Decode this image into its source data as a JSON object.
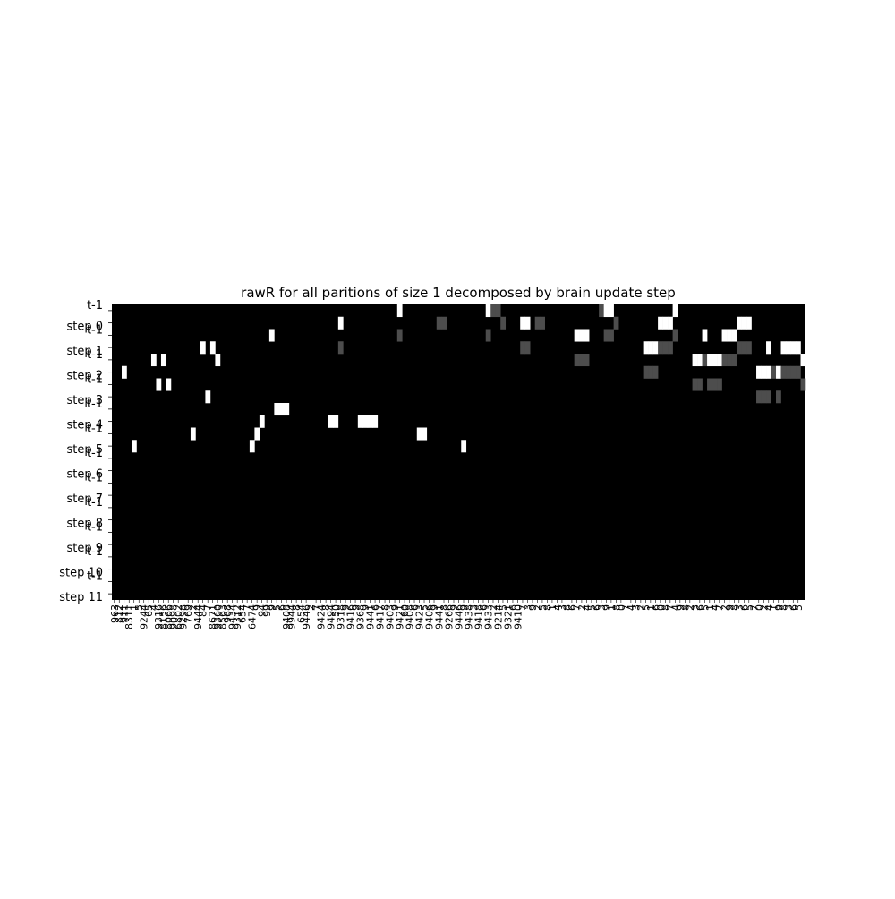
{
  "chart_data": {
    "type": "heatmap",
    "title": "rawR for all paritions of size 1 decomposed by brain update step",
    "xlabel": "",
    "ylabel": "",
    "row_labels": [
      "t-1",
      "step 0",
      "t-1",
      "step 1",
      "t-1",
      "step 2",
      "t-1",
      "step 3",
      "t-1",
      "step 4",
      "t-1",
      "step 5",
      "t-1",
      "step 6",
      "t-1",
      "step 7",
      "t-1",
      "step 8",
      "t-1",
      "step 9",
      "t-1",
      "step 10",
      "t-1",
      "step 11"
    ],
    "n_columns": 141,
    "colormap": "gray",
    "value_range": [
      0,
      1
    ],
    "cells": [
      {
        "row": 0,
        "col": 58,
        "value": 1.0
      },
      {
        "row": 0,
        "col": 76,
        "value": 1.0
      },
      {
        "row": 0,
        "col": 77,
        "value": 0.3
      },
      {
        "row": 0,
        "col": 78,
        "value": 0.3
      },
      {
        "row": 0,
        "col": 99,
        "value": 0.3
      },
      {
        "row": 0,
        "col": 100,
        "value": 1.0
      },
      {
        "row": 0,
        "col": 101,
        "value": 1.0
      },
      {
        "row": 0,
        "col": 114,
        "value": 1.0
      },
      {
        "row": 1,
        "col": 46,
        "value": 1.0
      },
      {
        "row": 1,
        "col": 66,
        "value": 0.3
      },
      {
        "row": 1,
        "col": 67,
        "value": 0.3
      },
      {
        "row": 1,
        "col": 79,
        "value": 0.3
      },
      {
        "row": 1,
        "col": 83,
        "value": 1.0
      },
      {
        "row": 1,
        "col": 84,
        "value": 1.0
      },
      {
        "row": 1,
        "col": 86,
        "value": 0.3
      },
      {
        "row": 1,
        "col": 87,
        "value": 0.3
      },
      {
        "row": 1,
        "col": 102,
        "value": 0.3
      },
      {
        "row": 1,
        "col": 111,
        "value": 1.0
      },
      {
        "row": 1,
        "col": 112,
        "value": 1.0
      },
      {
        "row": 1,
        "col": 113,
        "value": 1.0
      },
      {
        "row": 1,
        "col": 127,
        "value": 1.0
      },
      {
        "row": 1,
        "col": 128,
        "value": 1.0
      },
      {
        "row": 1,
        "col": 129,
        "value": 1.0
      },
      {
        "row": 2,
        "col": 32,
        "value": 1.0
      },
      {
        "row": 2,
        "col": 58,
        "value": 0.3
      },
      {
        "row": 2,
        "col": 76,
        "value": 0.3
      },
      {
        "row": 2,
        "col": 94,
        "value": 1.0
      },
      {
        "row": 2,
        "col": 95,
        "value": 1.0
      },
      {
        "row": 2,
        "col": 96,
        "value": 1.0
      },
      {
        "row": 2,
        "col": 100,
        "value": 0.3
      },
      {
        "row": 2,
        "col": 101,
        "value": 0.3
      },
      {
        "row": 2,
        "col": 114,
        "value": 0.3
      },
      {
        "row": 2,
        "col": 120,
        "value": 1.0
      },
      {
        "row": 2,
        "col": 124,
        "value": 1.0
      },
      {
        "row": 2,
        "col": 125,
        "value": 1.0
      },
      {
        "row": 2,
        "col": 126,
        "value": 1.0
      },
      {
        "row": 3,
        "col": 18,
        "value": 1.0
      },
      {
        "row": 3,
        "col": 20,
        "value": 1.0
      },
      {
        "row": 3,
        "col": 46,
        "value": 0.3
      },
      {
        "row": 3,
        "col": 83,
        "value": 0.3
      },
      {
        "row": 3,
        "col": 84,
        "value": 0.3
      },
      {
        "row": 3,
        "col": 108,
        "value": 1.0
      },
      {
        "row": 3,
        "col": 109,
        "value": 1.0
      },
      {
        "row": 3,
        "col": 110,
        "value": 1.0
      },
      {
        "row": 3,
        "col": 111,
        "value": 0.3
      },
      {
        "row": 3,
        "col": 112,
        "value": 0.3
      },
      {
        "row": 3,
        "col": 113,
        "value": 0.3
      },
      {
        "row": 3,
        "col": 127,
        "value": 0.3
      },
      {
        "row": 3,
        "col": 128,
        "value": 0.3
      },
      {
        "row": 3,
        "col": 129,
        "value": 0.3
      },
      {
        "row": 3,
        "col": 133,
        "value": 1.0
      },
      {
        "row": 3,
        "col": 136,
        "value": 1.0
      },
      {
        "row": 3,
        "col": 137,
        "value": 1.0
      },
      {
        "row": 3,
        "col": 138,
        "value": 1.0
      },
      {
        "row": 3,
        "col": 139,
        "value": 1.0
      },
      {
        "row": 4,
        "col": 8,
        "value": 1.0
      },
      {
        "row": 4,
        "col": 10,
        "value": 1.0
      },
      {
        "row": 4,
        "col": 21,
        "value": 1.0
      },
      {
        "row": 4,
        "col": 94,
        "value": 0.3
      },
      {
        "row": 4,
        "col": 95,
        "value": 0.3
      },
      {
        "row": 4,
        "col": 96,
        "value": 0.3
      },
      {
        "row": 4,
        "col": 118,
        "value": 1.0
      },
      {
        "row": 4,
        "col": 119,
        "value": 1.0
      },
      {
        "row": 4,
        "col": 120,
        "value": 0.3
      },
      {
        "row": 4,
        "col": 121,
        "value": 1.0
      },
      {
        "row": 4,
        "col": 122,
        "value": 1.0
      },
      {
        "row": 4,
        "col": 123,
        "value": 1.0
      },
      {
        "row": 4,
        "col": 124,
        "value": 0.3
      },
      {
        "row": 4,
        "col": 125,
        "value": 0.3
      },
      {
        "row": 4,
        "col": 126,
        "value": 0.3
      },
      {
        "row": 4,
        "col": 140,
        "value": 1.0
      },
      {
        "row": 5,
        "col": 2,
        "value": 1.0
      },
      {
        "row": 5,
        "col": 108,
        "value": 0.3
      },
      {
        "row": 5,
        "col": 109,
        "value": 0.3
      },
      {
        "row": 5,
        "col": 110,
        "value": 0.3
      },
      {
        "row": 5,
        "col": 131,
        "value": 1.0
      },
      {
        "row": 5,
        "col": 132,
        "value": 1.0
      },
      {
        "row": 5,
        "col": 133,
        "value": 1.0
      },
      {
        "row": 5,
        "col": 134,
        "value": 0.3
      },
      {
        "row": 5,
        "col": 135,
        "value": 1.0
      },
      {
        "row": 5,
        "col": 136,
        "value": 0.3
      },
      {
        "row": 5,
        "col": 137,
        "value": 0.3
      },
      {
        "row": 5,
        "col": 138,
        "value": 0.3
      },
      {
        "row": 5,
        "col": 139,
        "value": 0.3
      },
      {
        "row": 6,
        "col": 9,
        "value": 1.0
      },
      {
        "row": 6,
        "col": 11,
        "value": 1.0
      },
      {
        "row": 6,
        "col": 118,
        "value": 0.3
      },
      {
        "row": 6,
        "col": 119,
        "value": 0.3
      },
      {
        "row": 6,
        "col": 121,
        "value": 0.3
      },
      {
        "row": 6,
        "col": 122,
        "value": 0.3
      },
      {
        "row": 6,
        "col": 123,
        "value": 0.3
      },
      {
        "row": 6,
        "col": 140,
        "value": 0.3
      },
      {
        "row": 7,
        "col": 19,
        "value": 1.0
      },
      {
        "row": 7,
        "col": 131,
        "value": 0.3
      },
      {
        "row": 7,
        "col": 132,
        "value": 0.3
      },
      {
        "row": 7,
        "col": 133,
        "value": 0.3
      },
      {
        "row": 7,
        "col": 135,
        "value": 0.3
      },
      {
        "row": 8,
        "col": 33,
        "value": 1.0
      },
      {
        "row": 8,
        "col": 34,
        "value": 1.0
      },
      {
        "row": 8,
        "col": 35,
        "value": 1.0
      },
      {
        "row": 9,
        "col": 30,
        "value": 1.0
      },
      {
        "row": 9,
        "col": 44,
        "value": 1.0
      },
      {
        "row": 9,
        "col": 45,
        "value": 1.0
      },
      {
        "row": 9,
        "col": 50,
        "value": 1.0
      },
      {
        "row": 9,
        "col": 51,
        "value": 1.0
      },
      {
        "row": 9,
        "col": 52,
        "value": 1.0
      },
      {
        "row": 9,
        "col": 53,
        "value": 1.0
      },
      {
        "row": 10,
        "col": 16,
        "value": 1.0
      },
      {
        "row": 10,
        "col": 29,
        "value": 1.0
      },
      {
        "row": 10,
        "col": 62,
        "value": 1.0
      },
      {
        "row": 10,
        "col": 63,
        "value": 1.0
      },
      {
        "row": 11,
        "col": 4,
        "value": 1.0
      },
      {
        "row": 11,
        "col": 28,
        "value": 1.0
      },
      {
        "row": 11,
        "col": 71,
        "value": 1.0
      }
    ],
    "x_tick_labels": [
      "963",
      "812",
      "911",
      "8311",
      "1",
      "5",
      "9244",
      "65",
      "4",
      "9316",
      "8156",
      "8066",
      "9098",
      "6802",
      "9298",
      "769",
      "2",
      "9444",
      "84",
      "7",
      "8671",
      "9360",
      "8563",
      "968",
      "9434",
      "9312",
      "654",
      "7",
      "6474",
      "9",
      "94",
      "99",
      "9",
      "5",
      "6",
      "9408",
      "9944",
      "8",
      "654",
      "9446",
      "2",
      "7",
      "9424",
      "8",
      "9494",
      "50",
      "9318",
      "9",
      "9416",
      "9",
      "9368",
      "9",
      "9441",
      "6",
      "9417",
      "8",
      "9403",
      "9",
      "9421",
      "60",
      "9408",
      "6",
      "9423",
      "5",
      "9406",
      "9",
      "9441",
      "8",
      "9266",
      "9",
      "9446",
      "9",
      "9438",
      "3",
      "9418",
      "6",
      "9433",
      "2",
      "9214",
      "5",
      "9321",
      "6",
      "9410",
      "7",
      "3",
      "9",
      "2",
      "5",
      "8",
      "1",
      "4",
      "3",
      "8",
      "6",
      "7",
      "2",
      "4",
      "5",
      "6",
      "3",
      "9",
      "1",
      "8",
      "0",
      "7",
      "4",
      "3",
      "2",
      "5",
      "1",
      "6",
      "0",
      "8",
      "7",
      "4",
      "9",
      "8",
      "2",
      "3",
      "6",
      "5",
      "1",
      "4",
      "7",
      "2",
      "9",
      "8",
      "3",
      "6",
      "5",
      "7",
      "0",
      "2",
      "4",
      "1",
      "9",
      "8",
      "3",
      "6",
      "5"
    ]
  }
}
